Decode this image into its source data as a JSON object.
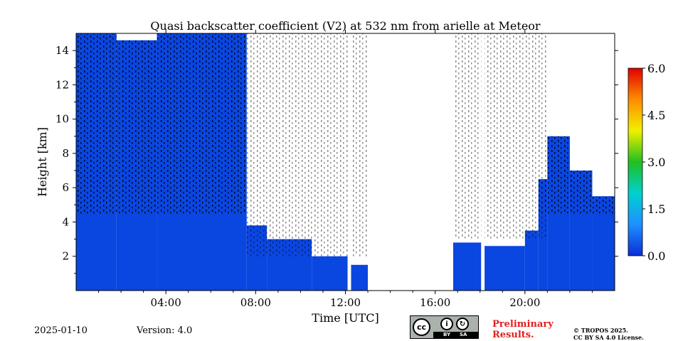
{
  "chart_data": {
    "type": "heatmap",
    "title": "Quasi backscatter coefficient (V2) at 532 nm from arielle at Meteor",
    "xlabel": "Time [UTC]",
    "ylabel": "Height [km]",
    "xlim_hours": [
      0,
      24
    ],
    "ylim_km": [
      0,
      15
    ],
    "x_ticks": [
      {
        "hour": 4,
        "label": "04:00"
      },
      {
        "hour": 8,
        "label": "08:00"
      },
      {
        "hour": 12,
        "label": "12:00"
      },
      {
        "hour": 16,
        "label": "16:00"
      },
      {
        "hour": 20,
        "label": "20:00"
      }
    ],
    "y_ticks": [
      {
        "km": 2,
        "label": "2"
      },
      {
        "km": 4,
        "label": "4"
      },
      {
        "km": 6,
        "label": "6"
      },
      {
        "km": 8,
        "label": "8"
      },
      {
        "km": 10,
        "label": "10"
      },
      {
        "km": 12,
        "label": "12"
      },
      {
        "km": 14,
        "label": "14"
      }
    ],
    "colorbar": {
      "min": 0.0,
      "max": 6.0,
      "ticks": [
        "0.0",
        "1.5",
        "3.0",
        "4.5",
        "6.0"
      ],
      "colors": [
        "#0a2dd8",
        "#1e90ff",
        "#00d0d0",
        "#20c020",
        "#f0f000",
        "#ff8c00",
        "#e00000"
      ]
    },
    "colors": {
      "low_signal": "#0a46e0",
      "noise": "#000000"
    },
    "data_gaps_hours": [
      [
        12.1,
        12.25
      ],
      [
        13.0,
        16.8
      ],
      [
        18.05,
        18.2
      ]
    ],
    "low_signal_profile": [
      {
        "from": 0.0,
        "to": 1.8,
        "top_km": 15.0
      },
      {
        "from": 1.8,
        "to": 3.6,
        "top_km": 14.6
      },
      {
        "from": 3.6,
        "to": 7.6,
        "top_km": 15.0
      },
      {
        "from": 7.6,
        "to": 8.5,
        "top_km": 3.8
      },
      {
        "from": 8.5,
        "to": 10.5,
        "top_km": 3.0
      },
      {
        "from": 10.5,
        "to": 12.1,
        "top_km": 2.0
      },
      {
        "from": 12.25,
        "to": 13.0,
        "top_km": 1.5
      },
      {
        "from": 16.8,
        "to": 18.05,
        "top_km": 2.8
      },
      {
        "from": 18.2,
        "to": 20.0,
        "top_km": 2.6
      },
      {
        "from": 20.0,
        "to": 20.6,
        "top_km": 3.5
      },
      {
        "from": 20.6,
        "to": 21.0,
        "top_km": 6.5
      },
      {
        "from": 21.0,
        "to": 22.0,
        "top_km": 9.0
      },
      {
        "from": 22.0,
        "to": 23.0,
        "top_km": 7.0
      },
      {
        "from": 23.0,
        "to": 24.0,
        "top_km": 5.5
      }
    ]
  },
  "footer": {
    "date": "2025-01-10",
    "version": "Version: 4.0",
    "preliminary_line1": "Preliminary",
    "preliminary_line2": "Results.",
    "copyright_line1": "© TROPOS 2025.",
    "copyright_line2": "CC BY SA 4.0 License.",
    "license_by": "BY",
    "license_sa": "SA"
  }
}
